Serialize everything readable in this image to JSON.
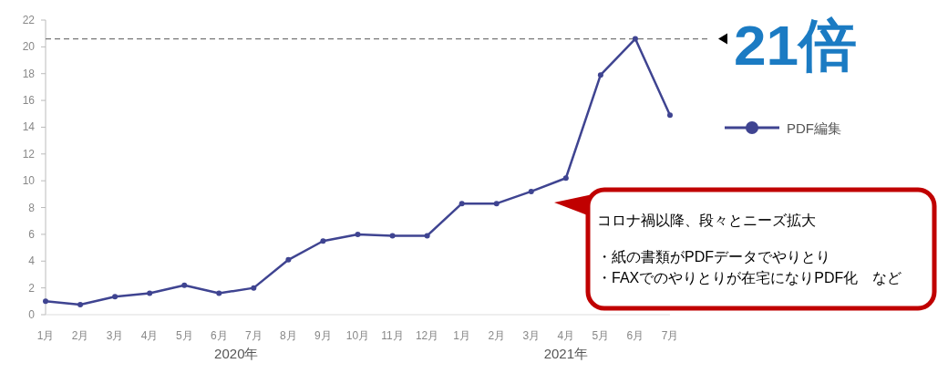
{
  "chart_data": {
    "type": "line",
    "categories": [
      "1月",
      "2月",
      "3月",
      "4月",
      "5月",
      "6月",
      "7月",
      "8月",
      "9月",
      "10月",
      "11月",
      "12月",
      "1月",
      "2月",
      "3月",
      "4月",
      "5月",
      "6月",
      "7月"
    ],
    "series": [
      {
        "name": "PDF編集",
        "color": "#3f4491",
        "values": [
          1.0,
          0.75,
          1.35,
          1.6,
          2.2,
          1.6,
          2.0,
          4.1,
          5.5,
          6.0,
          5.9,
          5.9,
          8.3,
          8.3,
          9.2,
          10.2,
          17.9,
          20.6,
          14.9
        ]
      }
    ],
    "ylim": [
      0,
      22
    ],
    "yticks": [
      0,
      2,
      4,
      6,
      8,
      10,
      12,
      14,
      16,
      18,
      20,
      22
    ],
    "ref_lines": [
      {
        "axis": "y",
        "value": 20.6,
        "label": "21倍",
        "color": "#777777",
        "line_style": "dashed"
      }
    ],
    "annotations": [
      "2020年",
      "2021年",
      "コロナ禍以降、段々とニーズ拡大",
      "・紙の書類がPDFデータでやりとり",
      "・FAXでのやりとりが在宅になりPDF化　など"
    ],
    "marker": "circle",
    "line_style": "solid",
    "grid": false,
    "legend": "right"
  }
}
